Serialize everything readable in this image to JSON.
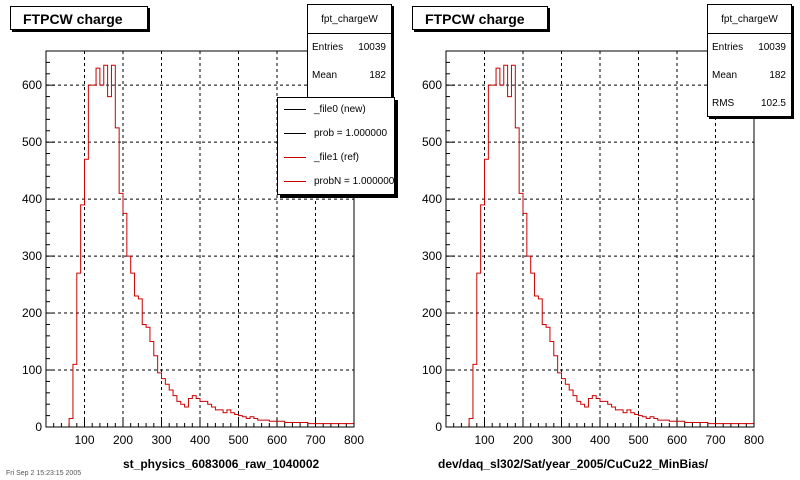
{
  "chart_data": [
    {
      "type": "bar",
      "title": "FTPCW charge",
      "xlabel": "st_physics_6083006_raw_1040002",
      "ylabel": "",
      "xlim": [
        0,
        800
      ],
      "ylim": [
        0,
        660
      ],
      "x_ticks": [
        100,
        200,
        300,
        400,
        500,
        600,
        700,
        800
      ],
      "y_ticks": [
        0,
        100,
        200,
        300,
        400,
        500,
        600
      ],
      "grid": true,
      "bin_width": 10,
      "bin_start": 0,
      "stats": {
        "name": "fpt_chargeW",
        "rows": [
          {
            "label": "Entries",
            "value": "10039"
          },
          {
            "label": "Mean",
            "value": "182"
          }
        ]
      },
      "legend": {
        "placement": "top-right",
        "entries": [
          {
            "label": "_file0 (new)",
            "color": "#000000"
          },
          {
            "label": "prob = 1.000000",
            "color": "#000000"
          },
          {
            "label": "_file1 (ref)",
            "color": "#cc0000"
          },
          {
            "label": "probN = 1.000000",
            "color": "#cc0000"
          }
        ]
      },
      "series": [
        {
          "name": "_file1 (ref)",
          "color": "#cc0000",
          "values": [
            0,
            0,
            0,
            0,
            0,
            0,
            15,
            110,
            270,
            390,
            470,
            600,
            600,
            630,
            600,
            635,
            580,
            635,
            525,
            410,
            375,
            300,
            270,
            230,
            225,
            180,
            175,
            150,
            125,
            95,
            85,
            75,
            65,
            55,
            45,
            40,
            35,
            50,
            55,
            50,
            45,
            45,
            40,
            35,
            30,
            30,
            25,
            30,
            25,
            22,
            20,
            18,
            15,
            18,
            15,
            12,
            12,
            12,
            10,
            10,
            10,
            10,
            8,
            8,
            8,
            8,
            8,
            8,
            6,
            6,
            6,
            6,
            6,
            6,
            6,
            6,
            6,
            6,
            6,
            6
          ]
        }
      ]
    },
    {
      "type": "bar",
      "title": "FTPCW charge",
      "xlabel": "dev/daq_sl302/Sat/year_2005/CuCu22_MinBias/",
      "ylabel": "",
      "xlim": [
        0,
        800
      ],
      "ylim": [
        0,
        660
      ],
      "x_ticks": [
        100,
        200,
        300,
        400,
        500,
        600,
        700,
        800
      ],
      "y_ticks": [
        0,
        100,
        200,
        300,
        400,
        500,
        600
      ],
      "grid": true,
      "bin_width": 10,
      "bin_start": 0,
      "stats": {
        "name": "fpt_chargeW",
        "rows": [
          {
            "label": "Entries",
            "value": "10039"
          },
          {
            "label": "Mean",
            "value": "182"
          },
          {
            "label": "RMS",
            "value": "102.5"
          }
        ]
      },
      "series": [
        {
          "name": "",
          "color": "#cc0000",
          "values": [
            0,
            0,
            0,
            0,
            0,
            0,
            15,
            110,
            270,
            390,
            470,
            600,
            600,
            630,
            600,
            635,
            580,
            635,
            525,
            410,
            375,
            300,
            270,
            230,
            225,
            180,
            175,
            150,
            125,
            95,
            85,
            75,
            65,
            55,
            45,
            40,
            35,
            50,
            55,
            50,
            45,
            45,
            40,
            35,
            30,
            30,
            25,
            30,
            25,
            22,
            20,
            18,
            15,
            18,
            15,
            12,
            12,
            12,
            10,
            10,
            10,
            10,
            8,
            8,
            8,
            8,
            8,
            8,
            6,
            6,
            6,
            6,
            6,
            6,
            6,
            6,
            6,
            6,
            6,
            6
          ]
        }
      ]
    }
  ],
  "footer_text": "Fri Sep 2 15:23:15 2005"
}
